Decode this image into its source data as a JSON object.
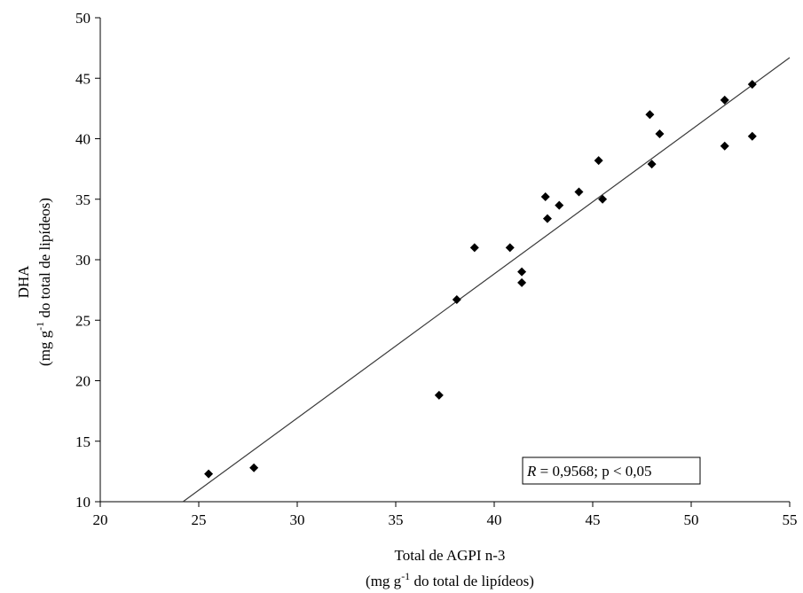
{
  "chart_data": {
    "type": "scatter",
    "xlabel": {
      "line1": "Total de AGPI n-3",
      "line2_pre": "(mg g",
      "line2_sup": "-1",
      "line2_post": " do total de lipídeos)"
    },
    "ylabel": {
      "line1": "DHA",
      "line2_pre": "(mg g",
      "line2_sup": "-1",
      "line2_post": " do total de lipídeos)"
    },
    "xlim": [
      20,
      55
    ],
    "ylim": [
      10,
      50
    ],
    "xticks": [
      20,
      25,
      30,
      35,
      40,
      45,
      50,
      55
    ],
    "yticks": [
      10,
      15,
      20,
      25,
      30,
      35,
      40,
      45,
      50
    ],
    "points": [
      {
        "x": 25.5,
        "y": 12.3
      },
      {
        "x": 27.8,
        "y": 12.8
      },
      {
        "x": 37.2,
        "y": 18.8
      },
      {
        "x": 38.1,
        "y": 26.7
      },
      {
        "x": 39.0,
        "y": 31.0
      },
      {
        "x": 40.8,
        "y": 31.0
      },
      {
        "x": 41.4,
        "y": 29.0
      },
      {
        "x": 41.4,
        "y": 28.1
      },
      {
        "x": 42.6,
        "y": 35.2
      },
      {
        "x": 42.7,
        "y": 33.4
      },
      {
        "x": 43.3,
        "y": 34.5
      },
      {
        "x": 44.3,
        "y": 35.6
      },
      {
        "x": 45.3,
        "y": 38.2
      },
      {
        "x": 45.5,
        "y": 35.0
      },
      {
        "x": 47.9,
        "y": 42.0
      },
      {
        "x": 48.0,
        "y": 37.9
      },
      {
        "x": 48.4,
        "y": 40.4
      },
      {
        "x": 51.7,
        "y": 43.2
      },
      {
        "x": 51.7,
        "y": 39.4
      },
      {
        "x": 53.1,
        "y": 44.5
      },
      {
        "x": 53.1,
        "y": 40.2
      }
    ],
    "regression_line": {
      "x": [
        24.2,
        55
      ],
      "y": [
        10,
        46.7
      ]
    },
    "annotation": {
      "r_symbol": "R",
      "text": " = 0,9568; p < 0,05"
    },
    "colors": {
      "marker": "#000000",
      "line": "#3a3a3a",
      "axis": "#000000"
    }
  }
}
